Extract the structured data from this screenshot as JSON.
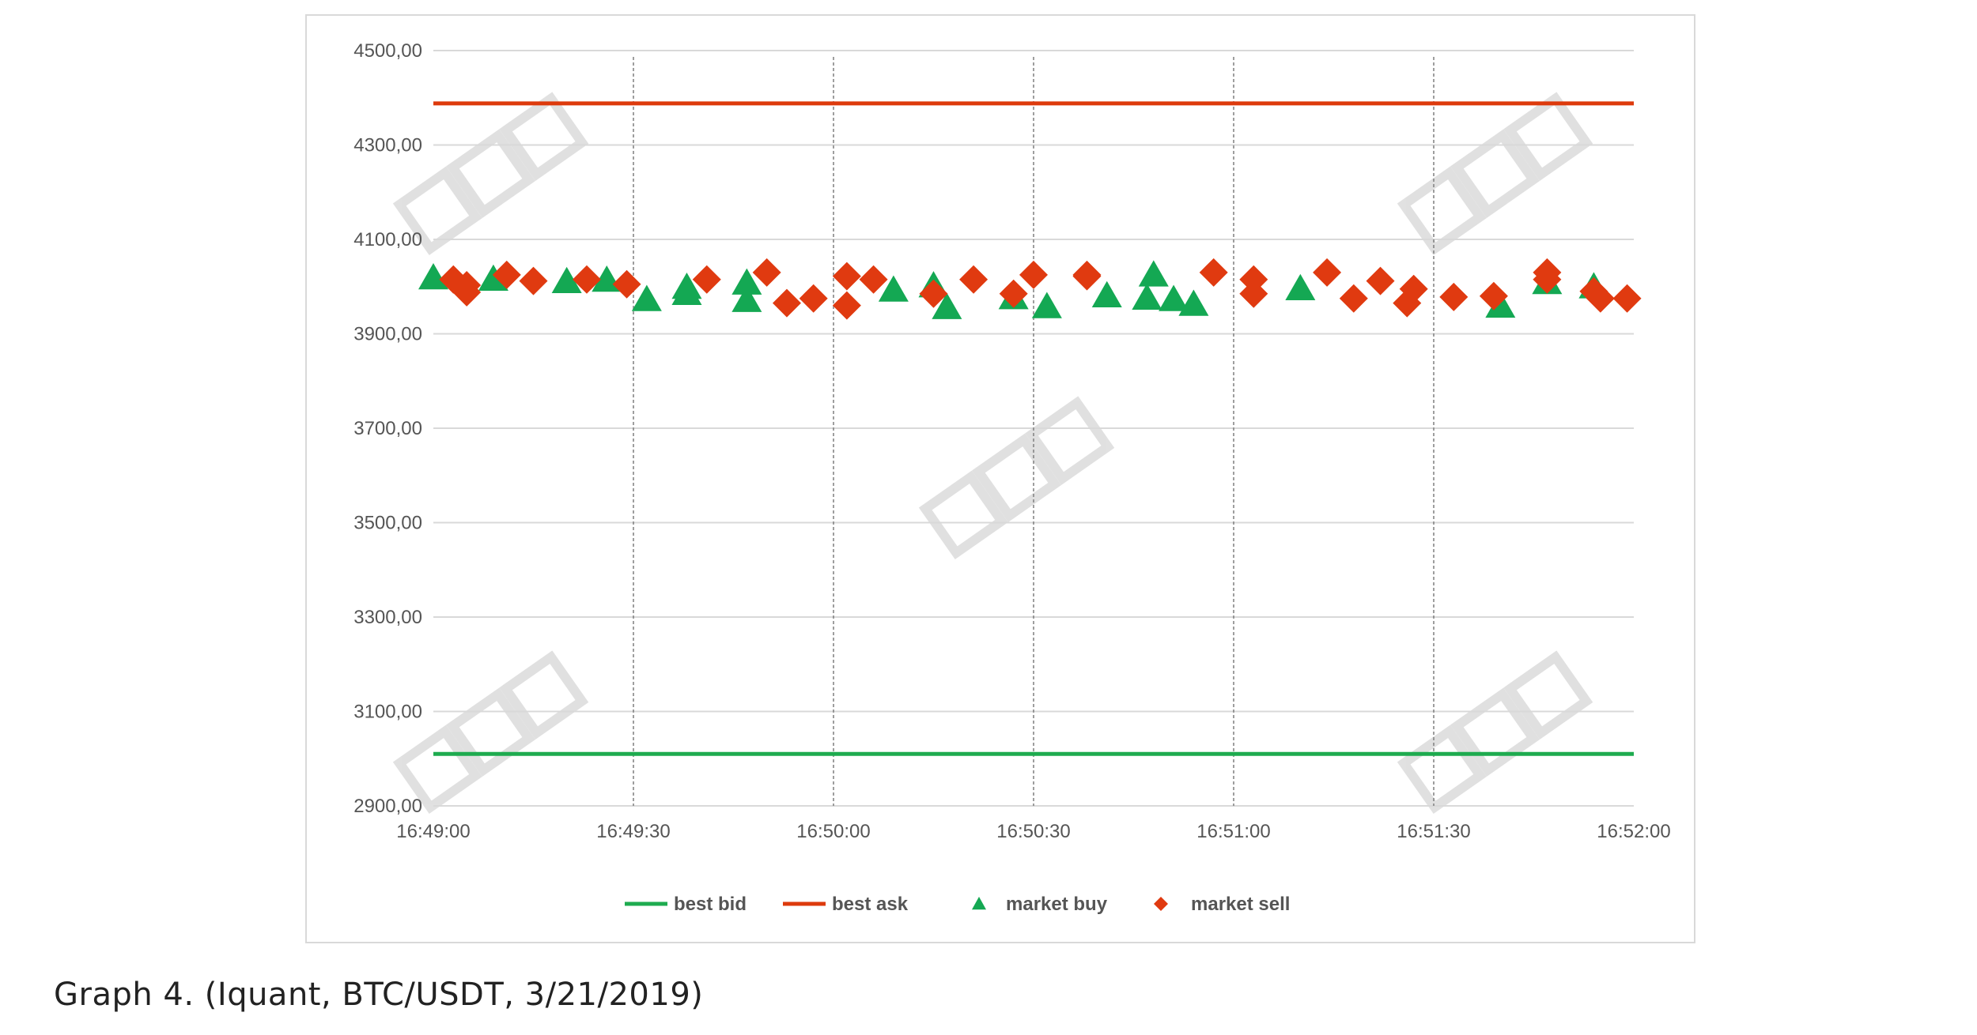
{
  "caption": "Graph 4. (Iquant, BTC/USDT, 3/21/2019)",
  "colors": {
    "bid": "#1eab4f",
    "ask": "#dd3a0c",
    "buy": "#14a853",
    "sell": "#e03a10",
    "grid": "#d9d9d9",
    "vline": "#7f7f7f",
    "watermark": "#c8c8c8"
  },
  "watermark_icon": "watermark-logo-icon",
  "chart_data": {
    "type": "scatter",
    "title": "",
    "xlabel": "",
    "ylabel": "",
    "ylim": [
      2900,
      4500
    ],
    "y_ticks": [
      2900,
      3100,
      3300,
      3500,
      3700,
      3900,
      4100,
      4300,
      4500
    ],
    "y_tick_labels": [
      "2900,00",
      "3100,00",
      "3300,00",
      "3500,00",
      "3700,00",
      "3900,00",
      "4100,00",
      "4300,00",
      "4500,00"
    ],
    "xlim_seconds": [
      0,
      180
    ],
    "x_ticks": [
      0,
      30,
      60,
      90,
      120,
      150,
      180
    ],
    "x_tick_labels": [
      "16:49:00",
      "16:49:30",
      "16:50:00",
      "16:50:30",
      "16:51:00",
      "16:51:30",
      "16:52:00"
    ],
    "x_vertical_dashed_lines": [
      30,
      60,
      90,
      120,
      150
    ],
    "legend": {
      "position": "bottom",
      "entries": [
        "best bid",
        "best ask",
        "market buy",
        "market sell"
      ]
    },
    "series": [
      {
        "name": "best bid",
        "kind": "line",
        "color": "#1eab4f",
        "points": [
          [
            0,
            3010
          ],
          [
            180,
            3010
          ]
        ]
      },
      {
        "name": "best ask",
        "kind": "line",
        "color": "#dd3a0c",
        "points": [
          [
            0,
            4388
          ],
          [
            180,
            4388
          ]
        ]
      },
      {
        "name": "market buy",
        "kind": "triangle",
        "color": "#14a853",
        "points": [
          [
            0,
            4018
          ],
          [
            9,
            4015
          ],
          [
            20,
            4010
          ],
          [
            26,
            4013
          ],
          [
            32,
            3972
          ],
          [
            38,
            3985
          ],
          [
            38,
            3998
          ],
          [
            47,
            3970
          ],
          [
            47,
            4007
          ],
          [
            69,
            3992
          ],
          [
            75,
            4001
          ],
          [
            77,
            3955
          ],
          [
            87,
            3976
          ],
          [
            92,
            3957
          ],
          [
            101,
            3980
          ],
          [
            107,
            3975
          ],
          [
            108,
            4024
          ],
          [
            111,
            3972
          ],
          [
            114,
            3962
          ],
          [
            130,
            3995
          ],
          [
            160,
            3958
          ],
          [
            167,
            4008
          ],
          [
            174,
            3999
          ]
        ]
      },
      {
        "name": "market sell",
        "kind": "diamond",
        "color": "#e03a10",
        "points": [
          [
            3,
            4015
          ],
          [
            5,
            4003
          ],
          [
            5,
            3988
          ],
          [
            11,
            4025
          ],
          [
            15,
            4012
          ],
          [
            23,
            4015
          ],
          [
            29,
            4005
          ],
          [
            41,
            4015
          ],
          [
            50,
            4030
          ],
          [
            53,
            3965
          ],
          [
            57,
            3975
          ],
          [
            62,
            4022
          ],
          [
            62,
            3960
          ],
          [
            66,
            4015
          ],
          [
            75,
            3985
          ],
          [
            81,
            4015
          ],
          [
            87,
            3985
          ],
          [
            90,
            4025
          ],
          [
            98,
            4022
          ],
          [
            98,
            4025
          ],
          [
            117,
            4030
          ],
          [
            123,
            4015
          ],
          [
            123,
            3985
          ],
          [
            134,
            4030
          ],
          [
            138,
            3975
          ],
          [
            142,
            4012
          ],
          [
            146,
            3965
          ],
          [
            147,
            3995
          ],
          [
            153,
            3978
          ],
          [
            159,
            3980
          ],
          [
            167,
            4030
          ],
          [
            167,
            4015
          ],
          [
            174,
            3990
          ],
          [
            175,
            3975
          ],
          [
            179,
            3975
          ]
        ]
      }
    ]
  }
}
